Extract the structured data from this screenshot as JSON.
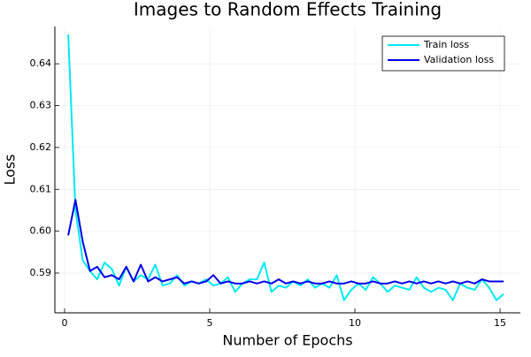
{
  "chart_data": {
    "type": "line",
    "title": "Images to Random Effects Training",
    "x_label": "Number of Epochs",
    "y_label": "Loss",
    "x": [
      0.125,
      0.375,
      0.625,
      0.875,
      1.125,
      1.375,
      1.625,
      1.875,
      2.125,
      2.375,
      2.625,
      2.875,
      3.125,
      3.375,
      3.625,
      3.875,
      4.125,
      4.375,
      4.625,
      4.875,
      5.125,
      5.375,
      5.625,
      5.875,
      6.125,
      6.375,
      6.625,
      6.875,
      7.125,
      7.375,
      7.625,
      7.875,
      8.125,
      8.375,
      8.625,
      8.875,
      9.125,
      9.375,
      9.625,
      9.875,
      10.125,
      10.375,
      10.625,
      10.875,
      11.125,
      11.375,
      11.625,
      11.875,
      12.125,
      12.375,
      12.625,
      12.875,
      13.125,
      13.375,
      13.625,
      13.875,
      14.125,
      14.375,
      14.625,
      14.875,
      15.125
    ],
    "series": [
      {
        "name": "Train loss",
        "color": "#00e8f0",
        "values": [
          0.647,
          0.605,
          0.593,
          0.5905,
          0.5885,
          0.5925,
          0.591,
          0.587,
          0.5915,
          0.588,
          0.5895,
          0.5885,
          0.592,
          0.587,
          0.5875,
          0.5895,
          0.587,
          0.588,
          0.5875,
          0.5885,
          0.587,
          0.5875,
          0.589,
          0.5855,
          0.5875,
          0.5885,
          0.5885,
          0.5925,
          0.5855,
          0.587,
          0.5865,
          0.588,
          0.587,
          0.5885,
          0.5865,
          0.5875,
          0.5865,
          0.5895,
          0.5835,
          0.586,
          0.5875,
          0.586,
          0.589,
          0.5875,
          0.5855,
          0.587,
          0.5865,
          0.586,
          0.589,
          0.5865,
          0.5855,
          0.5865,
          0.586,
          0.5835,
          0.5875,
          0.5865,
          0.586,
          0.5885,
          0.5865,
          0.5835,
          0.585
        ]
      },
      {
        "name": "Validation loss",
        "color": "#0000e8",
        "values": [
          0.599,
          0.6075,
          0.5975,
          0.5905,
          0.5915,
          0.589,
          0.5895,
          0.5885,
          0.5915,
          0.588,
          0.592,
          0.588,
          0.589,
          0.588,
          0.5885,
          0.589,
          0.5875,
          0.588,
          0.5875,
          0.588,
          0.5895,
          0.5875,
          0.588,
          0.5875,
          0.5875,
          0.588,
          0.5875,
          0.588,
          0.5875,
          0.5885,
          0.5875,
          0.588,
          0.5875,
          0.588,
          0.5875,
          0.5875,
          0.588,
          0.5875,
          0.5875,
          0.588,
          0.5875,
          0.5875,
          0.588,
          0.5875,
          0.5875,
          0.588,
          0.5875,
          0.588,
          0.5875,
          0.588,
          0.5875,
          0.588,
          0.5875,
          0.588,
          0.5875,
          0.588,
          0.5875,
          0.5885,
          0.588,
          0.588,
          0.588
        ]
      }
    ],
    "xlim": [
      -0.335,
      15.7
    ],
    "xticks": [
      0,
      5,
      10,
      15
    ],
    "ylim": [
      0.5805,
      0.6489
    ],
    "yticks": [
      0.59,
      {
        "value": 0.6,
        "label": "0.60"
      },
      0.61,
      0.62,
      0.63,
      0.64
    ],
    "grid": true,
    "legend": "top-right"
  }
}
